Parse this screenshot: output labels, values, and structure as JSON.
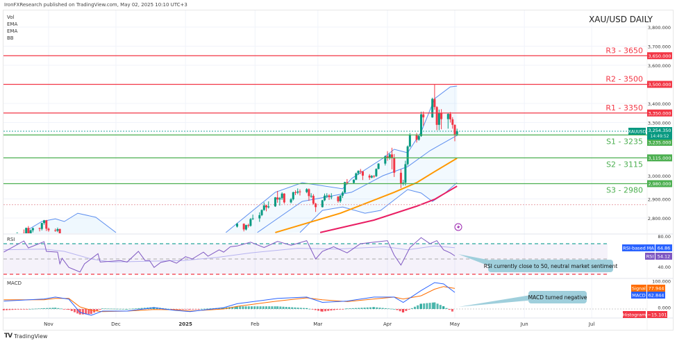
{
  "header": {
    "published": "IronFXResearch published on TradingView.com, May 02, 2025 10:10 UTC+3",
    "indicators": [
      "Vol",
      "EMA",
      "EMA",
      "BB"
    ]
  },
  "footer": {
    "brand": "TradingView"
  },
  "colors": {
    "up": "#089981",
    "down": "#f23645",
    "resistance": "#f23645",
    "support": "#4caf50",
    "ema_fast": "#ff9800",
    "ema_slow": "#e91e63",
    "bb": "#5b8def",
    "rsi": "#7e57c2",
    "rsi_ma": "#b7b3f0",
    "macd": "#2962ff",
    "signal": "#ff6d00",
    "callout": "#9fcfdc"
  },
  "chart_data": {
    "type": "candlestick",
    "title": "XAU/USD DAILY",
    "symbol": "XAUUSD",
    "last_price": "3,254.350",
    "countdown": "14:49:52",
    "price_axis_ticks": [
      "3,800.000",
      "3,700.000",
      "3,600.000",
      "3,400.000",
      "3,300.000",
      "3,000.000",
      "2,900.000",
      "2,800.000"
    ],
    "price_axis_values": [
      3800,
      3700,
      3600,
      3400,
      3300,
      3000,
      2900,
      2800
    ],
    "time_axis": [
      {
        "label": "Nov",
        "date": "2024-11-01"
      },
      {
        "label": "Dec",
        "date": "2024-12-01"
      },
      {
        "label": "2025",
        "date": "2025-01-01",
        "bold": true
      },
      {
        "label": "Feb",
        "date": "2025-02-01"
      },
      {
        "label": "Mar",
        "date": "2025-03-01"
      },
      {
        "label": "Apr",
        "date": "2025-04-01"
      },
      {
        "label": "May",
        "date": "2025-05-01"
      },
      {
        "label": "Jun",
        "date": "2025-06-01"
      },
      {
        "label": "Jul",
        "date": "2025-07-01"
      }
    ],
    "levels": [
      {
        "name": "R3 - 3650",
        "price": 3650,
        "tag": "3,650.000",
        "kind": "resistance"
      },
      {
        "name": "R2 - 3500",
        "price": 3500,
        "tag": "3,500.000",
        "kind": "resistance"
      },
      {
        "name": "R1 - 3350",
        "price": 3350,
        "tag": "3,350.000",
        "kind": "resistance"
      },
      {
        "name": "S1 - 3235",
        "price": 3235,
        "tag": "3,235.000",
        "kind": "support"
      },
      {
        "name": "S2 - 3115",
        "price": 3115,
        "tag": "3,115.000",
        "kind": "support"
      },
      {
        "name": "S3 - 2980",
        "price": 2980,
        "tag": "2,980.000",
        "kind": "support"
      }
    ],
    "candles": [
      [
        "2024-10-17",
        2675,
        2700,
        2672,
        2693
      ],
      [
        "2024-10-18",
        2693,
        2725,
        2690,
        2721
      ],
      [
        "2024-10-21",
        2721,
        2740,
        2705,
        2720
      ],
      [
        "2024-10-22",
        2720,
        2750,
        2712,
        2748
      ],
      [
        "2024-10-23",
        2748,
        2758,
        2708,
        2715
      ],
      [
        "2024-10-24",
        2715,
        2740,
        2710,
        2736
      ],
      [
        "2024-10-25",
        2736,
        2750,
        2725,
        2747
      ],
      [
        "2024-10-28",
        2747,
        2750,
        2730,
        2743
      ],
      [
        "2024-10-29",
        2743,
        2775,
        2735,
        2774
      ],
      [
        "2024-10-30",
        2774,
        2790,
        2765,
        2788
      ],
      [
        "2024-10-31",
        2788,
        2790,
        2732,
        2744
      ],
      [
        "2024-11-01",
        2744,
        2750,
        2728,
        2736
      ],
      [
        "2024-11-04",
        2736,
        2745,
        2728,
        2733
      ],
      [
        "2024-11-05",
        2733,
        2750,
        2726,
        2742
      ],
      [
        "2024-11-06",
        2742,
        2745,
        2652,
        2659
      ],
      [
        "2025-01-24",
        2755,
        2775,
        2750,
        2770
      ],
      [
        "2025-01-27",
        2770,
        2772,
        2730,
        2740
      ],
      [
        "2025-01-28",
        2740,
        2765,
        2735,
        2763
      ],
      [
        "2025-01-29",
        2763,
        2770,
        2750,
        2759
      ],
      [
        "2025-01-30",
        2759,
        2800,
        2755,
        2794
      ],
      [
        "2025-01-31",
        2794,
        2818,
        2790,
        2798
      ],
      [
        "2025-02-03",
        2798,
        2830,
        2780,
        2815
      ],
      [
        "2025-02-04",
        2815,
        2845,
        2810,
        2842
      ],
      [
        "2025-02-05",
        2842,
        2882,
        2838,
        2866
      ],
      [
        "2025-02-06",
        2866,
        2870,
        2835,
        2856
      ],
      [
        "2025-02-07",
        2856,
        2887,
        2850,
        2861
      ],
      [
        "2025-02-10",
        2861,
        2910,
        2858,
        2908
      ],
      [
        "2025-02-11",
        2908,
        2942,
        2880,
        2897
      ],
      [
        "2025-02-12",
        2897,
        2910,
        2865,
        2904
      ],
      [
        "2025-02-13",
        2904,
        2935,
        2895,
        2928
      ],
      [
        "2025-02-14",
        2928,
        2930,
        2875,
        2882
      ],
      [
        "2025-02-17",
        2882,
        2905,
        2877,
        2898
      ],
      [
        "2025-02-18",
        2898,
        2938,
        2892,
        2935
      ],
      [
        "2025-02-19",
        2935,
        2945,
        2920,
        2933
      ],
      [
        "2025-02-20",
        2933,
        2955,
        2925,
        2939
      ],
      [
        "2025-02-21",
        2939,
        2950,
        2918,
        2936
      ],
      [
        "2025-02-24",
        2936,
        2956,
        2930,
        2951
      ],
      [
        "2025-02-25",
        2951,
        2955,
        2890,
        2915
      ],
      [
        "2025-02-26",
        2915,
        2930,
        2905,
        2916
      ],
      [
        "2025-02-27",
        2916,
        2925,
        2870,
        2875
      ],
      [
        "2025-02-28",
        2875,
        2880,
        2832,
        2857
      ],
      [
        "2025-03-03",
        2857,
        2895,
        2855,
        2893
      ],
      [
        "2025-03-04",
        2893,
        2928,
        2888,
        2917
      ],
      [
        "2025-03-05",
        2917,
        2930,
        2905,
        2918
      ],
      [
        "2025-03-06",
        2918,
        2925,
        2895,
        2910
      ],
      [
        "2025-03-07",
        2910,
        2930,
        2898,
        2912
      ],
      [
        "2025-03-10",
        2912,
        2915,
        2880,
        2888
      ],
      [
        "2025-03-11",
        2888,
        2920,
        2880,
        2917
      ],
      [
        "2025-03-12",
        2917,
        2940,
        2905,
        2933
      ],
      [
        "2025-03-13",
        2933,
        2990,
        2930,
        2988
      ],
      [
        "2025-03-14",
        2988,
        3004,
        2975,
        2984
      ],
      [
        "2025-03-17",
        2984,
        3002,
        2980,
        3001
      ],
      [
        "2025-03-18",
        3001,
        3038,
        2998,
        3034
      ],
      [
        "2025-03-19",
        3034,
        3050,
        3025,
        3047
      ],
      [
        "2025-03-20",
        3047,
        3057,
        3030,
        3044
      ],
      [
        "2025-03-21",
        3044,
        3047,
        2999,
        3022
      ],
      [
        "2025-03-24",
        3022,
        3030,
        3000,
        3012
      ],
      [
        "2025-03-25",
        3012,
        3025,
        3008,
        3020
      ],
      [
        "2025-03-26",
        3020,
        3025,
        3010,
        3019
      ],
      [
        "2025-03-27",
        3019,
        3060,
        3015,
        3057
      ],
      [
        "2025-03-28",
        3057,
        3087,
        3055,
        3085
      ],
      [
        "2025-03-31",
        3085,
        3128,
        3075,
        3123
      ],
      [
        "2025-04-01",
        3123,
        3150,
        3100,
        3113
      ],
      [
        "2025-04-02",
        3113,
        3138,
        3105,
        3133
      ],
      [
        "2025-04-03",
        3133,
        3168,
        3055,
        3114
      ],
      [
        "2025-04-04",
        3114,
        3135,
        3015,
        3037
      ],
      [
        "2025-04-07",
        3037,
        3055,
        2957,
        2982
      ],
      [
        "2025-04-08",
        2982,
        3000,
        2970,
        2985
      ],
      [
        "2025-04-09",
        2985,
        3100,
        2970,
        3082
      ],
      [
        "2025-04-10",
        3082,
        3180,
        3075,
        3175
      ],
      [
        "2025-04-11",
        3175,
        3245,
        3170,
        3237
      ],
      [
        "2025-04-14",
        3237,
        3245,
        3195,
        3210
      ],
      [
        "2025-04-15",
        3210,
        3232,
        3205,
        3229
      ],
      [
        "2025-04-16",
        3229,
        3357,
        3225,
        3343
      ],
      [
        "2025-04-17",
        3343,
        3358,
        3283,
        3327
      ],
      [
        "2025-04-21",
        3327,
        3430,
        3325,
        3424
      ],
      [
        "2025-04-22",
        3424,
        3500,
        3367,
        3381
      ],
      [
        "2025-04-23",
        3381,
        3386,
        3260,
        3288
      ],
      [
        "2025-04-24",
        3288,
        3368,
        3260,
        3349
      ],
      [
        "2025-04-25",
        3349,
        3370,
        3265,
        3318
      ],
      [
        "2025-04-28",
        3318,
        3350,
        3268,
        3345
      ],
      [
        "2025-04-29",
        3345,
        3355,
        3300,
        3317
      ],
      [
        "2025-04-30",
        3317,
        3328,
        3268,
        3288
      ],
      [
        "2025-05-01",
        3288,
        3290,
        3202,
        3238
      ],
      [
        "2025-05-02",
        3238,
        3268,
        3230,
        3254
      ]
    ],
    "reference_lines": [
      {
        "price": 3254.35,
        "color": "#26a69a"
      },
      {
        "price": 2870,
        "color": "#e8a0a8"
      }
    ],
    "ema_fast": [
      [
        "2025-02-10",
        2724
      ],
      [
        "2025-03-11",
        2825
      ],
      [
        "2025-04-04",
        2935
      ],
      [
        "2025-04-14",
        2985
      ],
      [
        "2025-04-22",
        3043
      ],
      [
        "2025-05-02",
        3113
      ]
    ],
    "ema_slow": [
      [
        "2025-03-02",
        2724
      ],
      [
        "2025-03-26",
        2789
      ],
      [
        "2025-04-14",
        2862
      ],
      [
        "2025-04-22",
        2898
      ],
      [
        "2025-05-02",
        2967
      ]
    ],
    "bb_upper_oct": [
      [
        "2024-10-23",
        2740
      ],
      [
        "2024-10-29",
        2782
      ],
      [
        "2024-11-04",
        2796
      ],
      [
        "2024-11-08",
        2782
      ],
      [
        "2024-11-14",
        2825
      ],
      [
        "2024-11-22",
        2804
      ],
      [
        "2024-12-01",
        2724
      ]
    ],
    "bb_upper": [
      [
        "2025-01-19",
        2724
      ],
      [
        "2025-02-10",
        2935
      ],
      [
        "2025-02-22",
        2985
      ],
      [
        "2025-03-12",
        2953
      ],
      [
        "2025-03-16",
        3007
      ],
      [
        "2025-03-30",
        3113
      ],
      [
        "2025-04-04",
        3160
      ],
      [
        "2025-04-10",
        3142
      ],
      [
        "2025-04-16",
        3251
      ],
      [
        "2025-04-22",
        3425
      ],
      [
        "2025-04-29",
        3487
      ],
      [
        "2025-05-02",
        3491
      ]
    ],
    "bb_middle": [
      [
        "2025-02-02",
        2724
      ],
      [
        "2025-02-22",
        2887
      ],
      [
        "2025-03-16",
        2935
      ],
      [
        "2025-03-30",
        3022
      ],
      [
        "2025-04-10",
        3069
      ],
      [
        "2025-04-20",
        3153
      ],
      [
        "2025-05-02",
        3233
      ]
    ],
    "bb_lower": [
      [
        "2025-02-21",
        2724
      ],
      [
        "2025-03-03",
        2840
      ],
      [
        "2025-03-12",
        2858
      ],
      [
        "2025-03-22",
        2825
      ],
      [
        "2025-03-29",
        2840
      ],
      [
        "2025-04-10",
        2949
      ],
      [
        "2025-04-16",
        2931
      ],
      [
        "2025-04-21",
        2887
      ],
      [
        "2025-04-26",
        2924
      ],
      [
        "2025-05-02",
        2985
      ]
    ],
    "rsi": {
      "label": "RSI",
      "levels": [
        70,
        50,
        30
      ],
      "axis_ticks": [
        "80.00",
        "40.00"
      ],
      "axis_values": [
        80,
        40
      ],
      "value": "54.12",
      "ma_label": "RSI-based MA",
      "ma_value": "64.86",
      "series": [
        [
          "2024-10-12",
          59
        ],
        [
          "2024-10-21",
          73.6
        ],
        [
          "2024-10-23",
          64.5
        ],
        [
          "2024-10-30",
          72.7
        ],
        [
          "2024-10-31",
          60
        ],
        [
          "2024-11-05",
          59
        ],
        [
          "2024-11-06",
          43.6
        ],
        [
          "2024-11-07",
          51
        ],
        [
          "2024-11-10",
          39
        ],
        [
          "2024-11-15",
          33
        ],
        [
          "2024-11-17",
          43.6
        ],
        [
          "2024-11-23",
          57
        ],
        [
          "2024-11-24",
          46
        ],
        [
          "2024-11-29",
          47
        ],
        [
          "2024-12-03",
          48
        ],
        [
          "2024-12-06",
          46
        ],
        [
          "2024-12-11",
          60
        ],
        [
          "2024-12-14",
          48
        ],
        [
          "2024-12-16",
          48
        ],
        [
          "2024-12-18",
          39
        ],
        [
          "2024-12-21",
          45.5
        ],
        [
          "2024-12-25",
          48
        ],
        [
          "2024-12-28",
          44.5
        ],
        [
          "2025-01-01",
          53
        ],
        [
          "2025-01-04",
          50
        ],
        [
          "2025-01-09",
          59
        ],
        [
          "2025-01-11",
          53.6
        ],
        [
          "2025-01-16",
          62
        ],
        [
          "2025-01-18",
          59
        ],
        [
          "2025-01-21",
          66
        ],
        [
          "2025-01-24",
          67
        ],
        [
          "2025-01-30",
          72
        ],
        [
          "2025-02-05",
          65
        ],
        [
          "2025-02-11",
          73
        ],
        [
          "2025-02-17",
          68
        ],
        [
          "2025-02-24",
          74
        ],
        [
          "2025-02-28",
          50
        ],
        [
          "2025-03-03",
          60
        ],
        [
          "2025-03-08",
          66
        ],
        [
          "2025-03-14",
          58
        ],
        [
          "2025-03-20",
          70
        ],
        [
          "2025-03-26",
          72
        ],
        [
          "2025-04-01",
          74
        ],
        [
          "2025-04-04",
          55
        ],
        [
          "2025-04-07",
          42
        ],
        [
          "2025-04-11",
          65
        ],
        [
          "2025-04-16",
          78
        ],
        [
          "2025-04-20",
          70
        ],
        [
          "2025-04-23",
          74
        ],
        [
          "2025-04-26",
          62
        ],
        [
          "2025-04-29",
          58
        ],
        [
          "2025-05-01",
          54.12
        ]
      ],
      "ma_series": [
        [
          "2024-10-12",
          62
        ],
        [
          "2024-10-30",
          63
        ],
        [
          "2024-11-08",
          60
        ],
        [
          "2024-11-20",
          50
        ],
        [
          "2024-11-29",
          46
        ],
        [
          "2024-12-15",
          47
        ],
        [
          "2024-12-31",
          48
        ],
        [
          "2025-01-15",
          52
        ],
        [
          "2025-01-30",
          58
        ],
        [
          "2025-02-20",
          64
        ],
        [
          "2025-03-10",
          63
        ],
        [
          "2025-03-31",
          66
        ],
        [
          "2025-04-10",
          62
        ],
        [
          "2025-04-22",
          67
        ],
        [
          "2025-05-01",
          64.86
        ]
      ],
      "annotation": "RSI currently close to 50, neutral market sentiment"
    },
    "macd": {
      "label": "MACD",
      "axis_ticks": [
        "100.000",
        "0.000"
      ],
      "axis_values": [
        100,
        0
      ],
      "signal_label": "Signal",
      "signal_value": "77.944",
      "macd_label": "MACD",
      "macd_value": "62.844",
      "hist_label": "Histogram",
      "hist_value": "−15.101",
      "series": [
        [
          "2024-10-12",
          30,
          35
        ],
        [
          "2024-10-30",
          38,
          35
        ],
        [
          "2024-11-04",
          45,
          40
        ],
        [
          "2024-11-10",
          37,
          40
        ],
        [
          "2024-11-15",
          -13,
          8
        ],
        [
          "2024-11-20",
          -24,
          -5
        ],
        [
          "2024-11-25",
          -8,
          -10
        ],
        [
          "2024-12-06",
          -8,
          -8
        ],
        [
          "2024-12-18",
          5,
          -2
        ],
        [
          "2024-12-27",
          -5,
          -3
        ],
        [
          "2025-01-03",
          -10,
          -8
        ],
        [
          "2025-01-18",
          5,
          0
        ],
        [
          "2025-01-24",
          20,
          10
        ],
        [
          "2025-02-11",
          40,
          30
        ],
        [
          "2025-02-24",
          45,
          42
        ],
        [
          "2025-03-03",
          25,
          35
        ],
        [
          "2025-03-14",
          30,
          28
        ],
        [
          "2025-03-26",
          45,
          38
        ],
        [
          "2025-04-04",
          45,
          45
        ],
        [
          "2025-04-08",
          25,
          38
        ],
        [
          "2025-04-16",
          70,
          50
        ],
        [
          "2025-04-22",
          100,
          75
        ],
        [
          "2025-04-26",
          95,
          85
        ],
        [
          "2025-05-01",
          62.844,
          77.944
        ]
      ],
      "annotation": "MACD turned negative"
    }
  }
}
